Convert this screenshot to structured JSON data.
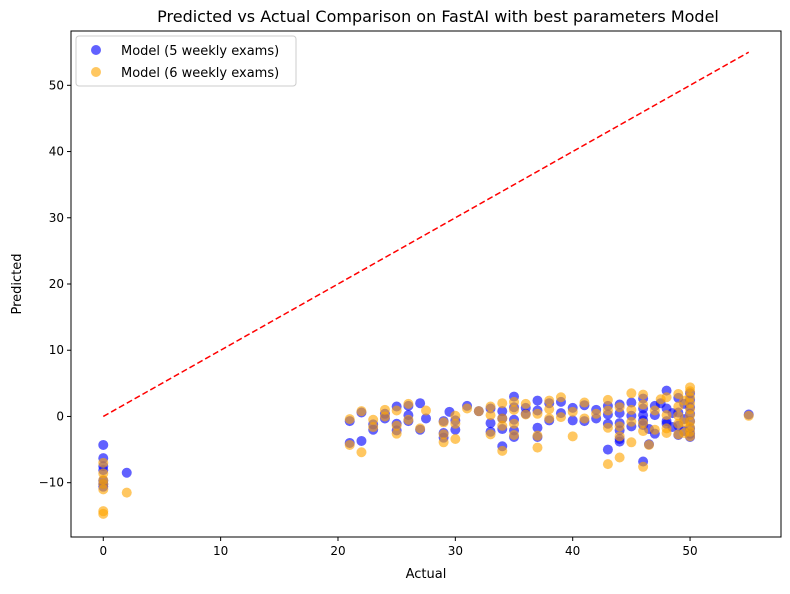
{
  "chart_data": {
    "type": "scatter",
    "title": "Predicted vs Actual Comparison on FastAI with best parameters Model",
    "xlabel": "Actual",
    "ylabel": "Predicted",
    "xlim": [
      -2.75,
      57.75
    ],
    "ylim": [
      -18.2,
      58.2
    ],
    "x_ticks": [
      0,
      10,
      20,
      30,
      40,
      50
    ],
    "y_ticks": [
      -10,
      0,
      10,
      20,
      30,
      40,
      50
    ],
    "grid": false,
    "legend_position": "upper-left",
    "reference_line": {
      "style": "dashed",
      "color": "#ff0000",
      "from": [
        0,
        0
      ],
      "to": [
        55,
        55
      ]
    },
    "series": [
      {
        "name": "Model (5 weekly exams)",
        "color": "#0000ff",
        "points": [
          [
            0,
            -4.3
          ],
          [
            0,
            -6.3
          ],
          [
            0,
            -7.5
          ],
          [
            0,
            -8.1
          ],
          [
            0,
            -9.7
          ],
          [
            0,
            -10.2
          ],
          [
            0,
            -10.6
          ],
          [
            2,
            -8.5
          ],
          [
            21,
            -4
          ],
          [
            21,
            -0.7
          ],
          [
            22,
            -3.7
          ],
          [
            22,
            0.6
          ],
          [
            23,
            -1.2
          ],
          [
            23,
            -2
          ],
          [
            24,
            0.4
          ],
          [
            24,
            -0.3
          ],
          [
            25,
            1.5
          ],
          [
            25,
            -1.1
          ],
          [
            25,
            -2.1
          ],
          [
            26,
            1.6
          ],
          [
            26,
            0.2
          ],
          [
            26,
            -0.7
          ],
          [
            27,
            2
          ],
          [
            27,
            -2
          ],
          [
            27.5,
            -0.3
          ],
          [
            29,
            -0.7
          ],
          [
            29,
            -2.5
          ],
          [
            29,
            -3.2
          ],
          [
            29.5,
            0.7
          ],
          [
            30,
            -0.6
          ],
          [
            30,
            -2
          ],
          [
            31,
            1.6
          ],
          [
            32,
            0.8
          ],
          [
            33,
            1.2
          ],
          [
            33,
            -1
          ],
          [
            33,
            -2.3
          ],
          [
            34,
            0.8
          ],
          [
            34,
            -1.9
          ],
          [
            34,
            -4.5
          ],
          [
            34,
            -0.3
          ],
          [
            35,
            3
          ],
          [
            35,
            1.4
          ],
          [
            35,
            -0.5
          ],
          [
            35,
            -2.1
          ],
          [
            35,
            -3.1
          ],
          [
            36,
            0.4
          ],
          [
            36,
            1.3
          ],
          [
            37,
            2.4
          ],
          [
            37,
            0.9
          ],
          [
            37,
            -1.7
          ],
          [
            37,
            -3.1
          ],
          [
            38,
            2
          ],
          [
            38,
            -0.6
          ],
          [
            39,
            2.2
          ],
          [
            39,
            0.5
          ],
          [
            40,
            -0.6
          ],
          [
            40,
            1.3
          ],
          [
            41,
            1.7
          ],
          [
            41,
            -0.7
          ],
          [
            42,
            -0.3
          ],
          [
            42,
            1
          ],
          [
            43,
            -5
          ],
          [
            43,
            1.6
          ],
          [
            43,
            -1.1
          ],
          [
            43,
            0.3
          ],
          [
            44,
            1.8
          ],
          [
            44,
            -1
          ],
          [
            44,
            -2.1
          ],
          [
            44,
            -3.4
          ],
          [
            44,
            -3.8
          ],
          [
            44,
            0.5
          ],
          [
            45,
            2.1
          ],
          [
            45,
            0.1
          ],
          [
            45,
            -1.5
          ],
          [
            46,
            2.7
          ],
          [
            46,
            1.2
          ],
          [
            46,
            0.2
          ],
          [
            46,
            -0.6
          ],
          [
            46,
            -1.3
          ],
          [
            46,
            -6.8
          ],
          [
            46.5,
            -4.2
          ],
          [
            46.5,
            -1.9
          ],
          [
            47,
            1.6
          ],
          [
            47,
            0.2
          ],
          [
            47,
            -2.6
          ],
          [
            47.5,
            2
          ],
          [
            48,
            3.9
          ],
          [
            48,
            1.2
          ],
          [
            48,
            -0.7
          ],
          [
            48,
            -1.1
          ],
          [
            48.5,
            0.5
          ],
          [
            48.5,
            -1.6
          ],
          [
            49,
            2.8
          ],
          [
            49,
            0.6
          ],
          [
            49,
            -1.4
          ],
          [
            49,
            -2.8
          ],
          [
            49.5,
            1.9
          ],
          [
            49.5,
            -0.4
          ],
          [
            49.5,
            -2.2
          ],
          [
            50,
            3.5
          ],
          [
            50,
            2.5
          ],
          [
            50,
            1.4
          ],
          [
            50,
            0.4
          ],
          [
            50,
            -0.7
          ],
          [
            50,
            -1.8
          ],
          [
            50,
            -2.6
          ],
          [
            50,
            -3.1
          ],
          [
            55,
            0.3
          ]
        ]
      },
      {
        "name": "Model (6 weekly exams)",
        "color": "#ffa500",
        "points": [
          [
            0,
            -7
          ],
          [
            0,
            -8.6
          ],
          [
            0,
            -9.6
          ],
          [
            0,
            -10.2
          ],
          [
            0,
            -11
          ],
          [
            0,
            -14.3
          ],
          [
            0,
            -14.7
          ],
          [
            2,
            -11.5
          ],
          [
            21,
            -0.4
          ],
          [
            21,
            -4.3
          ],
          [
            22,
            0.8
          ],
          [
            22,
            -5.4
          ],
          [
            23,
            -0.5
          ],
          [
            23,
            -1.6
          ],
          [
            24,
            1
          ],
          [
            24,
            0
          ],
          [
            25,
            0.9
          ],
          [
            25,
            -2.6
          ],
          [
            25,
            -1.4
          ],
          [
            26,
            1.9
          ],
          [
            26,
            -0.5
          ],
          [
            27,
            -1.8
          ],
          [
            27.5,
            0.9
          ],
          [
            29,
            -3.9
          ],
          [
            29,
            -0.9
          ],
          [
            29,
            -2.7
          ],
          [
            30,
            0.1
          ],
          [
            30,
            -1.1
          ],
          [
            30,
            -3.4
          ],
          [
            31,
            1.2
          ],
          [
            32,
            0.8
          ],
          [
            33,
            1.5
          ],
          [
            33,
            -2.7
          ],
          [
            33,
            0.2
          ],
          [
            34,
            2
          ],
          [
            34,
            -0.3
          ],
          [
            34,
            -5.2
          ],
          [
            34,
            -1.4
          ],
          [
            35,
            2.2
          ],
          [
            35,
            1
          ],
          [
            35,
            -1.1
          ],
          [
            35,
            -2.8
          ],
          [
            36,
            1.9
          ],
          [
            36,
            0.3
          ],
          [
            37,
            -2.9
          ],
          [
            37,
            -4.7
          ],
          [
            37,
            0.4
          ],
          [
            38,
            2.4
          ],
          [
            38,
            -0.3
          ],
          [
            38,
            1.1
          ],
          [
            39,
            2.9
          ],
          [
            39,
            -0.1
          ],
          [
            40,
            -3
          ],
          [
            40,
            0.7
          ],
          [
            41,
            2.1
          ],
          [
            41,
            -0.3
          ],
          [
            42,
            0.4
          ],
          [
            43,
            2.5
          ],
          [
            43,
            -1.7
          ],
          [
            43,
            -7.2
          ],
          [
            43,
            0.9
          ],
          [
            44,
            -6.2
          ],
          [
            44,
            -1.5
          ],
          [
            44,
            1.4
          ],
          [
            44,
            -3
          ],
          [
            45,
            3.5
          ],
          [
            45,
            1
          ],
          [
            45,
            -0.8
          ],
          [
            45,
            -3.9
          ],
          [
            46,
            3.3
          ],
          [
            46,
            1.8
          ],
          [
            46,
            -1
          ],
          [
            46,
            -2.2
          ],
          [
            46,
            -7.6
          ],
          [
            46.5,
            -4.3
          ],
          [
            47,
            0.9
          ],
          [
            47,
            -2
          ],
          [
            47.5,
            2.6
          ],
          [
            48,
            2.9
          ],
          [
            48,
            0.2
          ],
          [
            48,
            -1.8
          ],
          [
            48,
            -2.5
          ],
          [
            49,
            3.4
          ],
          [
            49,
            1.5
          ],
          [
            49,
            0.1
          ],
          [
            49,
            -1.1
          ],
          [
            49,
            -2.7
          ],
          [
            49.5,
            2.4
          ],
          [
            49.5,
            -0.9
          ],
          [
            49.5,
            -2.5
          ],
          [
            50,
            4.4
          ],
          [
            50,
            3.8
          ],
          [
            50,
            2.9
          ],
          [
            50,
            2
          ],
          [
            50,
            1.1
          ],
          [
            50,
            0.2
          ],
          [
            50,
            -0.8
          ],
          [
            50,
            -1.6
          ],
          [
            50,
            -2.3
          ],
          [
            50,
            -3
          ],
          [
            55,
            0.1
          ]
        ]
      }
    ]
  }
}
